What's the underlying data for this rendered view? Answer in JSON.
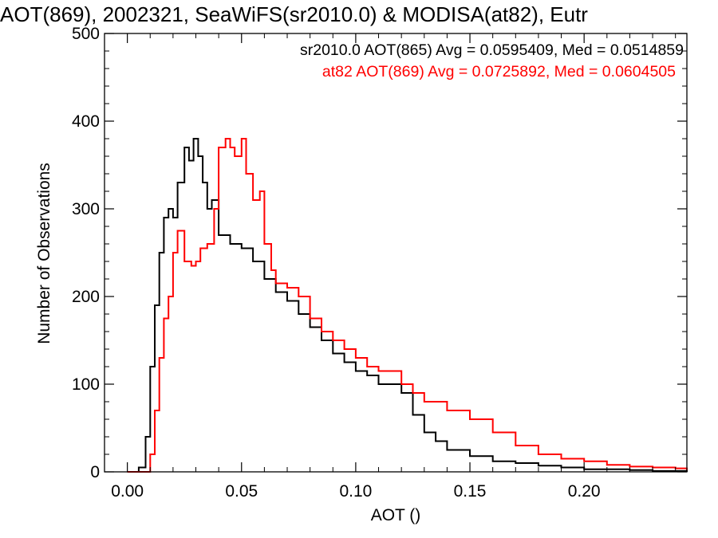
{
  "chart_data": {
    "type": "line",
    "title": "AOT(869), 2002321, SeaWiFS(sr2010.0) & MODISA(at82), Eutr",
    "xlabel": "AOT ()",
    "ylabel": "Number of Observations",
    "xlim": [
      -0.01,
      0.245
    ],
    "ylim": [
      0,
      500
    ],
    "x_ticks": [
      "0.00",
      "0.05",
      "0.10",
      "0.15",
      "0.20"
    ],
    "x_tick_values": [
      0.0,
      0.05,
      0.1,
      0.15,
      0.2
    ],
    "y_ticks": [
      "0",
      "100",
      "200",
      "300",
      "400",
      "500"
    ],
    "y_tick_values": [
      0,
      100,
      200,
      300,
      400,
      500
    ],
    "grid": false,
    "legend_position": "top-right",
    "annotations": [
      {
        "text": "sr2010.0 AOT(865) Avg = 0.0595409, Med = 0.0514859",
        "color": "#000000"
      },
      {
        "text": "at82 AOT(869) Avg = 0.0725892, Med = 0.0604505",
        "color": "#ff0000"
      }
    ],
    "series": [
      {
        "color": "#000000",
        "x": [
          0.0,
          0.005,
          0.008,
          0.01,
          0.012,
          0.014,
          0.016,
          0.018,
          0.02,
          0.022,
          0.025,
          0.027,
          0.029,
          0.031,
          0.033,
          0.035,
          0.037,
          0.04,
          0.045,
          0.05,
          0.055,
          0.06,
          0.065,
          0.07,
          0.075,
          0.08,
          0.085,
          0.09,
          0.095,
          0.1,
          0.105,
          0.11,
          0.115,
          0.12,
          0.125,
          0.13,
          0.135,
          0.14,
          0.15,
          0.16,
          0.17,
          0.18,
          0.19,
          0.2,
          0.21,
          0.22,
          0.23,
          0.24,
          0.245
        ],
        "values": [
          0,
          5,
          40,
          120,
          190,
          250,
          290,
          300,
          290,
          330,
          370,
          355,
          380,
          360,
          330,
          300,
          310,
          270,
          260,
          255,
          240,
          220,
          205,
          195,
          180,
          165,
          150,
          135,
          125,
          115,
          110,
          100,
          100,
          90,
          65,
          45,
          35,
          25,
          18,
          12,
          10,
          7,
          5,
          3,
          3,
          2,
          1,
          1,
          0
        ]
      },
      {
        "color": "#ff0000",
        "x": [
          0.0,
          0.008,
          0.01,
          0.012,
          0.014,
          0.016,
          0.018,
          0.02,
          0.022,
          0.025,
          0.028,
          0.03,
          0.032,
          0.035,
          0.038,
          0.04,
          0.043,
          0.045,
          0.047,
          0.05,
          0.052,
          0.055,
          0.058,
          0.06,
          0.063,
          0.065,
          0.07,
          0.075,
          0.08,
          0.085,
          0.09,
          0.095,
          0.1,
          0.105,
          0.11,
          0.115,
          0.12,
          0.125,
          0.13,
          0.14,
          0.15,
          0.16,
          0.17,
          0.18,
          0.19,
          0.2,
          0.21,
          0.22,
          0.23,
          0.24,
          0.245
        ],
        "values": [
          0,
          0,
          20,
          70,
          130,
          175,
          200,
          250,
          275,
          240,
          235,
          240,
          255,
          260,
          300,
          370,
          380,
          370,
          360,
          380,
          340,
          310,
          320,
          260,
          230,
          215,
          210,
          200,
          175,
          160,
          150,
          140,
          130,
          120,
          115,
          115,
          100,
          90,
          80,
          70,
          60,
          45,
          30,
          20,
          15,
          12,
          8,
          6,
          5,
          4,
          2
        ]
      }
    ]
  }
}
